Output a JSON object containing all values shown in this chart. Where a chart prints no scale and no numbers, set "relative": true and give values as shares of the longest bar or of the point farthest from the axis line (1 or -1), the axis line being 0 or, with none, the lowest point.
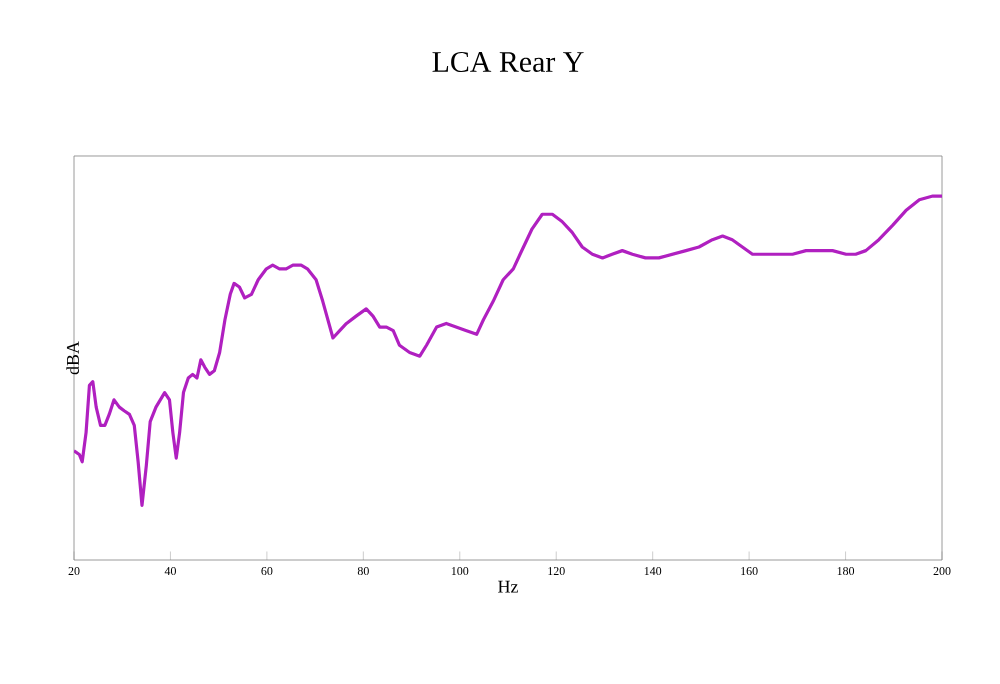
{
  "chart_data": {
    "type": "line",
    "title": "LCA Rear Y",
    "xlabel": "Hz",
    "ylabel": "dBA",
    "relative": true,
    "xlim": [
      20,
      200
    ],
    "xticks": [
      20,
      40,
      60,
      80,
      100,
      120,
      140,
      160,
      180,
      200
    ],
    "marker": "none",
    "line_style": "solid",
    "series": [
      {
        "color": "#b020c0",
        "x": [
          20.0,
          21.1,
          21.7,
          22.5,
          23.2,
          23.9,
          24.6,
          25.5,
          26.4,
          27.3,
          28.3,
          29.4,
          30.4,
          31.5,
          32.5,
          33.3,
          34.1,
          35.0,
          35.8,
          37.0,
          38.8,
          39.8,
          40.5,
          41.2,
          41.9,
          42.7,
          43.7,
          44.6,
          45.5,
          46.3,
          47.1,
          48.1,
          49.1,
          50.2,
          51.3,
          52.4,
          53.2,
          54.3,
          55.4,
          56.8,
          58.2,
          59.9,
          61.2,
          62.6,
          64.0,
          65.4,
          67.1,
          68.4,
          70.2,
          71.6,
          73.7,
          75.1,
          76.5,
          78.5,
          80.6,
          82.0,
          83.4,
          84.8,
          86.2,
          87.5,
          89.6,
          91.7,
          93.1,
          95.2,
          97.2,
          99.3,
          101.4,
          103.5,
          104.9,
          106.9,
          109.0,
          111.1,
          112.5,
          115.0,
          117.1,
          119.2,
          121.2,
          123.3,
          125.4,
          127.5,
          129.6,
          131.6,
          133.7,
          135.8,
          138.5,
          141.3,
          144.1,
          146.9,
          149.6,
          152.4,
          154.5,
          156.5,
          158.6,
          160.7,
          163.5,
          166.2,
          169.0,
          171.8,
          174.5,
          177.3,
          180.1,
          182.1,
          184.2,
          186.9,
          189.8,
          192.5,
          195.3,
          198.1,
          200.0
        ],
        "values": [
          0.3,
          0.29,
          0.27,
          0.35,
          0.48,
          0.49,
          0.42,
          0.37,
          0.37,
          0.4,
          0.44,
          0.42,
          0.41,
          0.4,
          0.37,
          0.27,
          0.15,
          0.26,
          0.38,
          0.42,
          0.46,
          0.44,
          0.35,
          0.28,
          0.35,
          0.46,
          0.5,
          0.51,
          0.5,
          0.55,
          0.53,
          0.51,
          0.52,
          0.57,
          0.66,
          0.73,
          0.76,
          0.75,
          0.72,
          0.73,
          0.77,
          0.8,
          0.81,
          0.8,
          0.8,
          0.81,
          0.81,
          0.8,
          0.77,
          0.71,
          0.61,
          0.63,
          0.65,
          0.67,
          0.69,
          0.67,
          0.64,
          0.64,
          0.63,
          0.59,
          0.57,
          0.56,
          0.59,
          0.64,
          0.65,
          0.64,
          0.63,
          0.62,
          0.66,
          0.71,
          0.77,
          0.8,
          0.84,
          0.91,
          0.95,
          0.95,
          0.93,
          0.9,
          0.86,
          0.84,
          0.83,
          0.84,
          0.85,
          0.84,
          0.83,
          0.83,
          0.84,
          0.85,
          0.86,
          0.88,
          0.89,
          0.88,
          0.86,
          0.84,
          0.84,
          0.84,
          0.84,
          0.85,
          0.85,
          0.85,
          0.84,
          0.84,
          0.85,
          0.88,
          0.92,
          0.96,
          0.99,
          1.0,
          1.0
        ]
      }
    ]
  }
}
